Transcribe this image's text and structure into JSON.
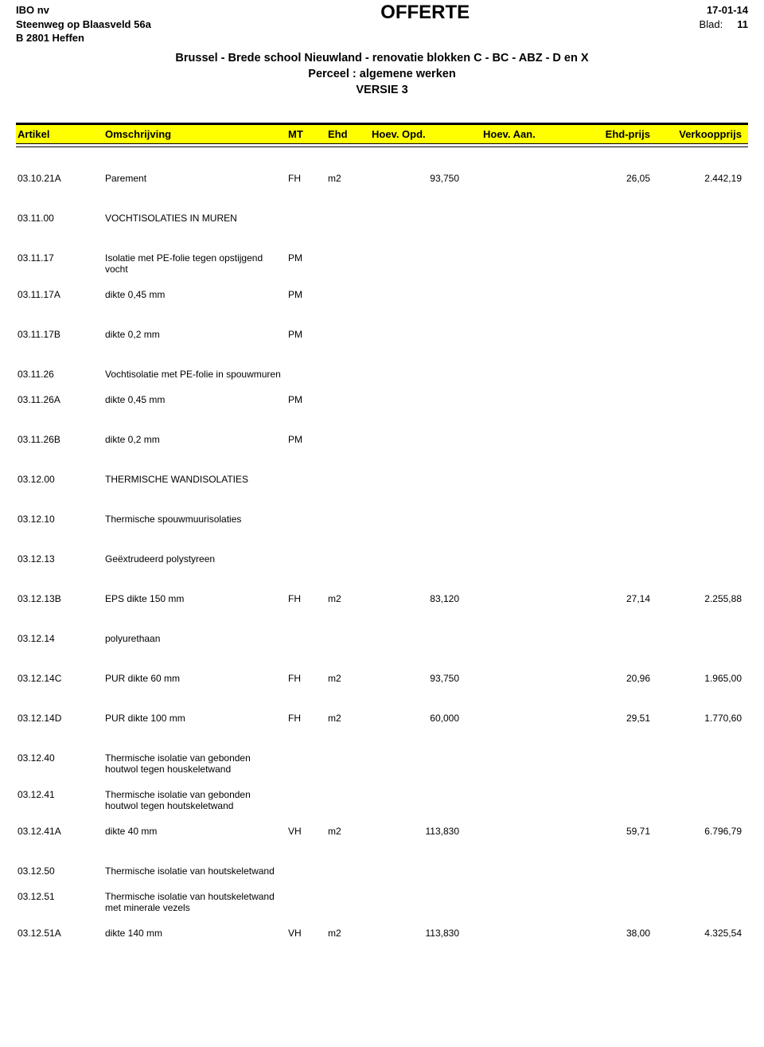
{
  "company": {
    "name": "IBO nv",
    "address1": "Steenweg op Blaasveld 56a",
    "address2": "B 2801 Heffen"
  },
  "doc": {
    "title": "OFFERTE",
    "date": "17-01-14",
    "blad_label": "Blad:",
    "blad_num": "11"
  },
  "project": {
    "line1": "Brussel - Brede school Nieuwland - renovatie blokken C - BC - ABZ - D en X",
    "line2": "Perceel : algemene werken",
    "line3": "VERSIE 3"
  },
  "columns": {
    "artikel": "Artikel",
    "omschrijving": "Omschrijving",
    "mt": "MT",
    "ehd": "Ehd",
    "hoev_opd": "Hoev. Opd.",
    "hoev_aan": "Hoev. Aan.",
    "ehd_prijs": "Ehd-prijs",
    "verkoopprijs": "Verkoopprijs"
  },
  "colors": {
    "highlight": "#ffff00",
    "text": "#000000",
    "background": "#ffffff"
  },
  "rows": [
    {
      "artikel": "03.10.21A",
      "omschrijving": "Parement",
      "mt": "FH",
      "ehd": "m2",
      "opd": "93,750",
      "aan": "",
      "eprijs": "26,05",
      "vprijs": "2.442,19",
      "tight": false
    },
    {
      "artikel": "03.11.00",
      "omschrijving": "VOCHTISOLATIES IN MUREN",
      "mt": "",
      "ehd": "",
      "opd": "",
      "aan": "",
      "eprijs": "",
      "vprijs": "",
      "tight": false
    },
    {
      "artikel": "03.11.17",
      "omschrijving": "Isolatie met PE-folie tegen opstijgend vocht",
      "mt": "PM",
      "ehd": "",
      "opd": "",
      "aan": "",
      "eprijs": "",
      "vprijs": "",
      "tight": false
    },
    {
      "artikel": "03.11.17A",
      "omschrijving": "dikte 0,45 mm",
      "mt": "PM",
      "ehd": "",
      "opd": "",
      "aan": "",
      "eprijs": "",
      "vprijs": "",
      "tight": true
    },
    {
      "artikel": "03.11.17B",
      "omschrijving": "dikte 0,2 mm",
      "mt": "PM",
      "ehd": "",
      "opd": "",
      "aan": "",
      "eprijs": "",
      "vprijs": "",
      "tight": false
    },
    {
      "artikel": "03.11.26",
      "omschrijving": "Vochtisolatie met PE-folie in spouwmuren",
      "mt": "",
      "ehd": "",
      "opd": "",
      "aan": "",
      "eprijs": "",
      "vprijs": "",
      "tight": false
    },
    {
      "artikel": "03.11.26A",
      "omschrijving": "dikte 0,45 mm",
      "mt": "PM",
      "ehd": "",
      "opd": "",
      "aan": "",
      "eprijs": "",
      "vprijs": "",
      "tight": true
    },
    {
      "artikel": "03.11.26B",
      "omschrijving": "dikte 0,2 mm",
      "mt": "PM",
      "ehd": "",
      "opd": "",
      "aan": "",
      "eprijs": "",
      "vprijs": "",
      "tight": false
    },
    {
      "artikel": "03.12.00",
      "omschrijving": "THERMISCHE WANDISOLATIES",
      "mt": "",
      "ehd": "",
      "opd": "",
      "aan": "",
      "eprijs": "",
      "vprijs": "",
      "tight": false
    },
    {
      "artikel": "03.12.10",
      "omschrijving": "Thermische spouwmuurisolaties",
      "mt": "",
      "ehd": "",
      "opd": "",
      "aan": "",
      "eprijs": "",
      "vprijs": "",
      "tight": false
    },
    {
      "artikel": "03.12.13",
      "omschrijving": "Geëxtrudeerd polystyreen",
      "mt": "",
      "ehd": "",
      "opd": "",
      "aan": "",
      "eprijs": "",
      "vprijs": "",
      "tight": false
    },
    {
      "artikel": "03.12.13B",
      "omschrijving": "EPS dikte 150 mm",
      "mt": "FH",
      "ehd": "m2",
      "opd": "83,120",
      "aan": "",
      "eprijs": "27,14",
      "vprijs": "2.255,88",
      "tight": false
    },
    {
      "artikel": "03.12.14",
      "omschrijving": "polyurethaan",
      "mt": "",
      "ehd": "",
      "opd": "",
      "aan": "",
      "eprijs": "",
      "vprijs": "",
      "tight": false
    },
    {
      "artikel": "03.12.14C",
      "omschrijving": "PUR dikte 60 mm",
      "mt": "FH",
      "ehd": "m2",
      "opd": "93,750",
      "aan": "",
      "eprijs": "20,96",
      "vprijs": "1.965,00",
      "tight": false
    },
    {
      "artikel": "03.12.14D",
      "omschrijving": "PUR dikte 100 mm",
      "mt": "FH",
      "ehd": "m2",
      "opd": "60,000",
      "aan": "",
      "eprijs": "29,51",
      "vprijs": "1.770,60",
      "tight": false
    },
    {
      "artikel": "03.12.40",
      "omschrijving": "Thermische isolatie van gebonden houtwol tegen houskeletwand",
      "mt": "",
      "ehd": "",
      "opd": "",
      "aan": "",
      "eprijs": "",
      "vprijs": "",
      "tight": false
    },
    {
      "artikel": "03.12.41",
      "omschrijving": "Thermische isolatie van gebonden houtwol tegen houtskeletwand",
      "mt": "",
      "ehd": "",
      "opd": "",
      "aan": "",
      "eprijs": "",
      "vprijs": "",
      "tight": true
    },
    {
      "artikel": "03.12.41A",
      "omschrijving": "dikte 40 mm",
      "mt": "VH",
      "ehd": "m2",
      "opd": "113,830",
      "aan": "",
      "eprijs": "59,71",
      "vprijs": "6.796,79",
      "tight": true
    },
    {
      "artikel": "03.12.50",
      "omschrijving": "Thermische isolatie van houtskeletwand",
      "mt": "",
      "ehd": "",
      "opd": "",
      "aan": "",
      "eprijs": "",
      "vprijs": "",
      "tight": false
    },
    {
      "artikel": "03.12.51",
      "omschrijving": "Thermische isolatie van houtskeletwand met minerale vezels",
      "mt": "",
      "ehd": "",
      "opd": "",
      "aan": "",
      "eprijs": "",
      "vprijs": "",
      "tight": true
    },
    {
      "artikel": "03.12.51A",
      "omschrijving": "dikte 140 mm",
      "mt": "VH",
      "ehd": "m2",
      "opd": "113,830",
      "aan": "",
      "eprijs": "38,00",
      "vprijs": "4.325,54",
      "tight": true
    }
  ]
}
